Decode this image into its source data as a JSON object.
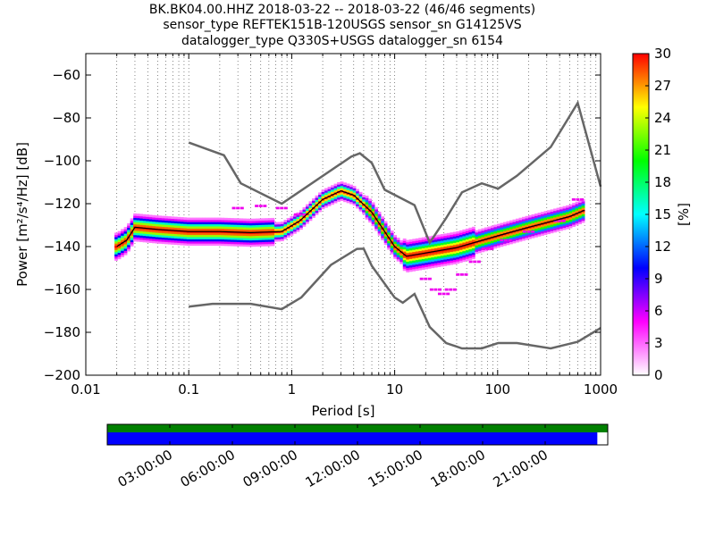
{
  "chart_data": [
    {
      "type": "heatmap",
      "title_lines": [
        "BK.BK04.00.HHZ   2018-03-22 -- 2018-03-22  (46/46 segments)",
        "sensor_type REFTEK151B-120USGS sensor_sn G14125VS",
        "datalogger_type Q330S+USGS datalogger_sn 6154"
      ],
      "xlabel": "Period [s]",
      "ylabel": "Power [m²/s⁴/Hz] [dB]",
      "xscale": "log",
      "xlim": [
        0.01,
        1000
      ],
      "ylim": [
        -200,
        -50
      ],
      "x_tick_labels": [
        "0.01",
        "0.1",
        "1",
        "10",
        "100",
        "1000"
      ],
      "x_ticks": [
        0.01,
        0.1,
        1,
        10,
        100,
        1000
      ],
      "y_ticks": [
        -200,
        -180,
        -160,
        -140,
        -120,
        -100,
        -80,
        -60
      ],
      "y_tick_labels": [
        "−200",
        "−180",
        "−160",
        "−140",
        "−120",
        "−100",
        "−80",
        "−60"
      ],
      "grid": "dotted vertical lines",
      "colorbar": {
        "label": "[%]",
        "range": [
          0,
          30
        ],
        "ticks": [
          "0",
          "3",
          "6",
          "9",
          "12",
          "15",
          "18",
          "21",
          "24",
          "27",
          "30"
        ],
        "colors": [
          "#ffffff",
          "#ff00ff",
          "#0000ff",
          "#00ffff",
          "#00ff00",
          "#ffff00",
          "#ff0000"
        ]
      },
      "noise_models": {
        "high": [
          [
            0.1,
            -91.5
          ],
          [
            0.22,
            -97.4
          ],
          [
            0.32,
            -110.5
          ],
          [
            0.8,
            -120
          ],
          [
            3.8,
            -98
          ],
          [
            4.6,
            -96.5
          ],
          [
            6,
            -101
          ],
          [
            8,
            -113.5
          ],
          [
            15.6,
            -120.7
          ],
          [
            21.9,
            -138.2
          ],
          [
            31.6,
            -126.7
          ],
          [
            45,
            -114.7
          ],
          [
            70,
            -110.5
          ],
          [
            101,
            -113
          ],
          [
            154,
            -107
          ],
          [
            328,
            -93.6
          ],
          [
            600,
            -73
          ],
          [
            1000,
            -112
          ]
        ],
        "low": [
          [
            0.1,
            -168
          ],
          [
            0.17,
            -166.7
          ],
          [
            0.4,
            -166.7
          ],
          [
            0.8,
            -169.2
          ],
          [
            1.24,
            -163.7
          ],
          [
            2.4,
            -148.6
          ],
          [
            4.3,
            -141.1
          ],
          [
            5,
            -141
          ],
          [
            6,
            -149
          ],
          [
            10,
            -163.8
          ],
          [
            12,
            -166.2
          ],
          [
            15.6,
            -162.1
          ],
          [
            21.9,
            -177.5
          ],
          [
            31.6,
            -185
          ],
          [
            45,
            -187.5
          ],
          [
            70,
            -187.5
          ],
          [
            101,
            -185
          ],
          [
            154,
            -185
          ],
          [
            328,
            -187.5
          ],
          [
            600,
            -184.4
          ],
          [
            1000,
            -178
          ]
        ]
      },
      "mode_curve": [
        [
          0.02,
          -140
        ],
        [
          0.025,
          -137
        ],
        [
          0.03,
          -131
        ],
        [
          0.05,
          -132
        ],
        [
          0.1,
          -133
        ],
        [
          0.2,
          -133
        ],
        [
          0.4,
          -133.5
        ],
        [
          0.8,
          -133
        ],
        [
          1.2,
          -128
        ],
        [
          2,
          -118
        ],
        [
          3,
          -114
        ],
        [
          4,
          -116
        ],
        [
          6,
          -124
        ],
        [
          8,
          -133
        ],
        [
          10,
          -140
        ],
        [
          13,
          -144.5
        ],
        [
          20,
          -143
        ],
        [
          40,
          -140.5
        ],
        [
          100,
          -135
        ],
        [
          200,
          -131
        ],
        [
          500,
          -126
        ],
        [
          700,
          -123
        ]
      ]
    },
    {
      "type": "timeline",
      "x_tick_labels": [
        "03:00:00",
        "06:00:00",
        "09:00:00",
        "12:00:00",
        "15:00:00",
        "18:00:00",
        "21:00:00"
      ],
      "data_availability_hours": [
        0,
        24
      ],
      "psd_coverage_hours": [
        0,
        23.5
      ],
      "colors": {
        "data": "#008000",
        "psd": "#0000ff"
      }
    }
  ]
}
